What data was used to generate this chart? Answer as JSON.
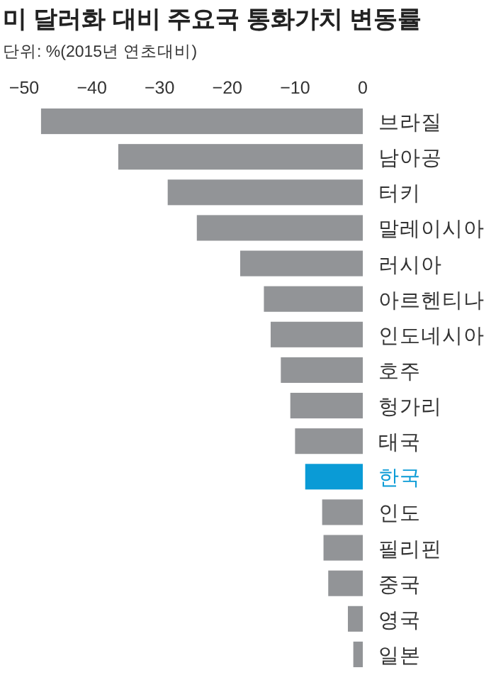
{
  "chart_data": {
    "type": "bar",
    "orientation": "horizontal",
    "title": "미 달러화 대비 주요국 통화가치 변동률",
    "subtitle": "단위: %(2015년 연초대비)",
    "categories": [
      "브라질",
      "남아공",
      "터키",
      "말레이시아",
      "러시아",
      "아르헨티나",
      "인도네시아",
      "호주",
      "헝가리",
      "태국",
      "한국",
      "인도",
      "필리핀",
      "중국",
      "영국",
      "일본"
    ],
    "values": [
      -47.5,
      -36.1,
      -28.8,
      -24.5,
      -18.1,
      -14.6,
      -13.6,
      -12.1,
      -10.7,
      -10.0,
      -8.5,
      -6.0,
      -5.8,
      -5.1,
      -2.2,
      -1.4
    ],
    "colors": [
      "#929497",
      "#929497",
      "#929497",
      "#929497",
      "#929497",
      "#929497",
      "#929497",
      "#929497",
      "#929497",
      "#929497",
      "#0a9bd6",
      "#929497",
      "#929497",
      "#929497",
      "#929497",
      "#929497"
    ],
    "xlim": [
      -50,
      0
    ],
    "xticks": [
      -50,
      -40,
      -30,
      -20,
      -10,
      0
    ],
    "tick_labels": "x"
  }
}
